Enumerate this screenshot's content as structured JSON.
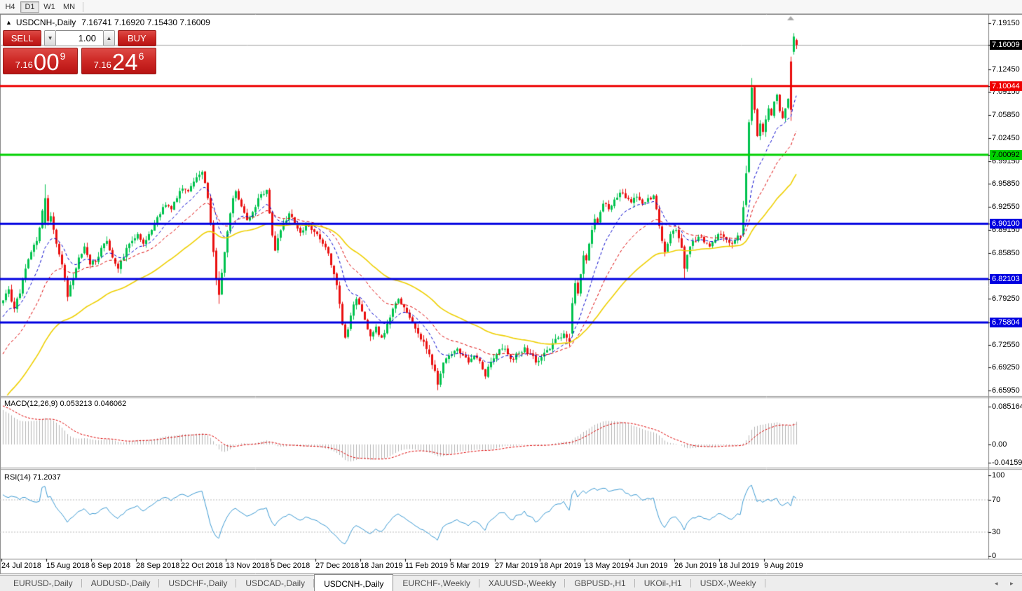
{
  "toolbar": {
    "timeframes": [
      {
        "label": "H4",
        "active": false
      },
      {
        "label": "D1",
        "active": true
      },
      {
        "label": "W1",
        "active": false
      },
      {
        "label": "MN",
        "active": false
      }
    ]
  },
  "chart_header": {
    "collapse_icon": "▲",
    "symbol": "USDCNH-,Daily",
    "ohlc": "7.16741 7.16920 7.15430 7.16009"
  },
  "trade_panel": {
    "sell_label": "SELL",
    "buy_label": "BUY",
    "volume": "1.00",
    "spinner_down": "▼",
    "spinner_up": "▲",
    "sell_price": {
      "prefix": "7.16",
      "big": "00",
      "sup": "9"
    },
    "buy_price": {
      "prefix": "7.16",
      "big": "24",
      "sup": "6"
    }
  },
  "price_axis": {
    "ticks": [
      "7.19150",
      "7.12450",
      "7.09150",
      "7.05850",
      "7.02450",
      "6.99150",
      "6.95850",
      "6.92550",
      "6.89150",
      "6.85850",
      "6.79250",
      "6.72550",
      "6.69250",
      "6.65950"
    ]
  },
  "levels": {
    "current": {
      "label": "7.16009",
      "value": 7.16009,
      "color": "#000000",
      "text": "#ffffff",
      "line_color": "#a6a6a6"
    },
    "lines": [
      {
        "label": "7.10044",
        "value": 7.10044,
        "color": "#ee0000",
        "text": "#ffffff"
      },
      {
        "label": "7.00092",
        "value": 7.00092,
        "color": "#00d000",
        "text": "#000000"
      },
      {
        "label": "6.90100",
        "value": 6.901,
        "color": "#0000e0",
        "text": "#ffffff"
      },
      {
        "label": "6.82103",
        "value": 6.82103,
        "color": "#0000e0",
        "text": "#ffffff"
      },
      {
        "label": "6.75804",
        "value": 6.75804,
        "color": "#0000e0",
        "text": "#ffffff"
      }
    ]
  },
  "macd": {
    "label": "MACD(12,26,9) 0.053213 0.046062",
    "axis_ticks": [
      {
        "label": "0.085164",
        "value": 0.085164
      },
      {
        "label": "0.00",
        "value": 0
      },
      {
        "label": "-0.041597",
        "value": -0.041597
      }
    ]
  },
  "rsi": {
    "label": "RSI(14) 71.2037",
    "axis_ticks": [
      {
        "label": "100",
        "value": 100
      },
      {
        "label": "70",
        "value": 70
      },
      {
        "label": "30",
        "value": 30
      },
      {
        "label": "0",
        "value": 0
      }
    ],
    "dashed_levels": [
      70,
      30
    ]
  },
  "date_axis": {
    "labels": [
      "24 Jul 2018",
      "15 Aug 2018",
      "6 Sep 2018",
      "28 Sep 2018",
      "22 Oct 2018",
      "13 Nov 2018",
      "5 Dec 2018",
      "27 Dec 2018",
      "18 Jan 2019",
      "11 Feb 2019",
      "5 Mar 2019",
      "27 Mar 2019",
      "18 Apr 2019",
      "13 May 2019",
      "4 Jun 2019",
      "26 Jun 2019",
      "18 Jul 2019",
      "9 Aug 2019"
    ]
  },
  "tabs": {
    "items": [
      {
        "label": "EURUSD-,Daily",
        "active": false
      },
      {
        "label": "AUDUSD-,Daily",
        "active": false
      },
      {
        "label": "USDCHF-,Daily",
        "active": false
      },
      {
        "label": "USDCAD-,Daily",
        "active": false
      },
      {
        "label": "USDCNH-,Daily",
        "active": true
      },
      {
        "label": "EURCHF-,Weekly",
        "active": false
      },
      {
        "label": "XAUUSD-,Weekly",
        "active": false
      },
      {
        "label": "GBPUSD-,H1",
        "active": false
      },
      {
        "label": "UKOil-,H1",
        "active": false
      },
      {
        "label": "USDX-,Weekly",
        "active": false
      }
    ],
    "scroll_left": "◂",
    "scroll_right": "▸"
  },
  "chart_data": {
    "type": "candlestick",
    "symbol": "USDCNH-",
    "timeframe": "Daily",
    "ohlc_display": {
      "open": "7.16741",
      "high": "7.16920",
      "low": "7.15430",
      "close": "7.16009"
    },
    "candle_count": 284,
    "anchors": [
      [
        0,
        6.79
      ],
      [
        2,
        6.806
      ],
      [
        4,
        6.778
      ],
      [
        6,
        6.8
      ],
      [
        8,
        6.836
      ],
      [
        10,
        6.86
      ],
      [
        12,
        6.876
      ],
      [
        14,
        6.92
      ],
      [
        15,
        6.938
      ],
      [
        16,
        6.905
      ],
      [
        17,
        6.912
      ],
      [
        19,
        6.872
      ],
      [
        21,
        6.842
      ],
      [
        23,
        6.795
      ],
      [
        25,
        6.822
      ],
      [
        27,
        6.852
      ],
      [
        29,
        6.868
      ],
      [
        31,
        6.842
      ],
      [
        33,
        6.846
      ],
      [
        35,
        6.866
      ],
      [
        37,
        6.876
      ],
      [
        39,
        6.852
      ],
      [
        41,
        6.836
      ],
      [
        43,
        6.852
      ],
      [
        45,
        6.872
      ],
      [
        47,
        6.88
      ],
      [
        48,
        6.886
      ],
      [
        50,
        6.872
      ],
      [
        52,
        6.886
      ],
      [
        54,
        6.9
      ],
      [
        56,
        6.915
      ],
      [
        58,
        6.928
      ],
      [
        60,
        6.922
      ],
      [
        62,
        6.938
      ],
      [
        64,
        6.952
      ],
      [
        66,
        6.948
      ],
      [
        68,
        6.962
      ],
      [
        70,
        6.972
      ],
      [
        71,
        6.976
      ],
      [
        72,
        6.96
      ],
      [
        73,
        6.938
      ],
      [
        74,
        6.9
      ],
      [
        75,
        6.86
      ],
      [
        76,
        6.82
      ],
      [
        77,
        6.798
      ],
      [
        78,
        6.83
      ],
      [
        79,
        6.86
      ],
      [
        80,
        6.89
      ],
      [
        81,
        6.916
      ],
      [
        82,
        6.938
      ],
      [
        83,
        6.948
      ],
      [
        85,
        6.926
      ],
      [
        87,
        6.906
      ],
      [
        89,
        6.918
      ],
      [
        91,
        6.938
      ],
      [
        93,
        6.944
      ],
      [
        94,
        6.95
      ],
      [
        95,
        6.916
      ],
      [
        96,
        6.884
      ],
      [
        97,
        6.862
      ],
      [
        98,
        6.88
      ],
      [
        100,
        6.902
      ],
      [
        102,
        6.916
      ],
      [
        104,
        6.902
      ],
      [
        106,
        6.888
      ],
      [
        108,
        6.9
      ],
      [
        110,
        6.892
      ],
      [
        112,
        6.886
      ],
      [
        114,
        6.872
      ],
      [
        116,
        6.858
      ],
      [
        118,
        6.828
      ],
      [
        119,
        6.812
      ],
      [
        120,
        6.785
      ],
      [
        121,
        6.755
      ],
      [
        122,
        6.736
      ],
      [
        123,
        6.748
      ],
      [
        124,
        6.768
      ],
      [
        125,
        6.784
      ],
      [
        126,
        6.792
      ],
      [
        127,
        6.784
      ],
      [
        128,
        6.774
      ],
      [
        129,
        6.762
      ],
      [
        130,
        6.748
      ],
      [
        131,
        6.738
      ],
      [
        132,
        6.744
      ],
      [
        133,
        6.752
      ],
      [
        134,
        6.74
      ],
      [
        135,
        6.736
      ],
      [
        137,
        6.756
      ],
      [
        139,
        6.778
      ],
      [
        141,
        6.792
      ],
      [
        143,
        6.78
      ],
      [
        144,
        6.772
      ],
      [
        146,
        6.758
      ],
      [
        148,
        6.742
      ],
      [
        150,
        6.73
      ],
      [
        152,
        6.712
      ],
      [
        154,
        6.688
      ],
      [
        155,
        6.668
      ],
      [
        156,
        6.684
      ],
      [
        157,
        6.7
      ],
      [
        158,
        6.706
      ],
      [
        160,
        6.712
      ],
      [
        162,
        6.72
      ],
      [
        164,
        6.71
      ],
      [
        166,
        6.7
      ],
      [
        168,
        6.71
      ],
      [
        170,
        6.702
      ],
      [
        171,
        6.69
      ],
      [
        172,
        6.68
      ],
      [
        173,
        6.694
      ],
      [
        175,
        6.706
      ],
      [
        176,
        6.712
      ],
      [
        178,
        6.72
      ],
      [
        180,
        6.712
      ],
      [
        182,
        6.704
      ],
      [
        184,
        6.714
      ],
      [
        186,
        6.722
      ],
      [
        188,
        6.712
      ],
      [
        190,
        6.7
      ],
      [
        192,
        6.708
      ],
      [
        194,
        6.718
      ],
      [
        196,
        6.728
      ],
      [
        198,
        6.736
      ],
      [
        200,
        6.742
      ],
      [
        201,
        6.736
      ],
      [
        202,
        6.73
      ],
      [
        203,
        6.786
      ],
      [
        204,
        6.815
      ],
      [
        205,
        6.8
      ],
      [
        206,
        6.828
      ],
      [
        207,
        6.855
      ],
      [
        208,
        6.848
      ],
      [
        209,
        6.872
      ],
      [
        210,
        6.892
      ],
      [
        211,
        6.908
      ],
      [
        212,
        6.902
      ],
      [
        213,
        6.918
      ],
      [
        214,
        6.93
      ],
      [
        216,
        6.922
      ],
      [
        218,
        6.936
      ],
      [
        220,
        6.946
      ],
      [
        222,
        6.938
      ],
      [
        224,
        6.932
      ],
      [
        226,
        6.94
      ],
      [
        228,
        6.93
      ],
      [
        230,
        6.938
      ],
      [
        232,
        6.942
      ],
      [
        233,
        6.922
      ],
      [
        234,
        6.898
      ],
      [
        235,
        6.876
      ],
      [
        236,
        6.86
      ],
      [
        237,
        6.872
      ],
      [
        238,
        6.886
      ],
      [
        240,
        6.892
      ],
      [
        241,
        6.88
      ],
      [
        242,
        6.866
      ],
      [
        243,
        6.836
      ],
      [
        244,
        6.856
      ],
      [
        245,
        6.868
      ],
      [
        246,
        6.876
      ],
      [
        248,
        6.882
      ],
      [
        250,
        6.874
      ],
      [
        252,
        6.868
      ],
      [
        254,
        6.878
      ],
      [
        256,
        6.886
      ],
      [
        258,
        6.878
      ],
      [
        260,
        6.872
      ],
      [
        262,
        6.884
      ],
      [
        263,
        6.882
      ],
      [
        264,
        6.925
      ],
      [
        265,
        6.974
      ],
      [
        266,
        7.048
      ],
      [
        267,
        7.098
      ],
      [
        268,
        7.066
      ],
      [
        269,
        7.028
      ],
      [
        270,
        7.046
      ],
      [
        271,
        7.034
      ],
      [
        272,
        7.052
      ],
      [
        273,
        7.068
      ],
      [
        274,
        7.058
      ],
      [
        275,
        7.078
      ],
      [
        276,
        7.088
      ],
      [
        277,
        7.064
      ],
      [
        278,
        7.054
      ],
      [
        279,
        7.068
      ],
      [
        280,
        7.082
      ],
      [
        281,
        7.066
      ],
      [
        282,
        7.172
      ],
      [
        283,
        7.16
      ]
    ],
    "specials": {
      "15": {
        "o": 6.9,
        "h": 6.958,
        "l": 6.894,
        "c": 6.938
      },
      "76": {
        "o": 6.862,
        "h": 6.866,
        "l": 6.812,
        "c": 6.82
      },
      "77": {
        "o": 6.82,
        "h": 6.832,
        "l": 6.785,
        "c": 6.798
      },
      "155": {
        "o": 6.688,
        "h": 6.692,
        "l": 6.66,
        "c": 6.668
      },
      "203": {
        "o": 6.742,
        "h": 6.794,
        "l": 6.738,
        "c": 6.786
      },
      "243": {
        "o": 6.868,
        "h": 6.87,
        "l": 6.821,
        "c": 6.836
      },
      "264": {
        "o": 6.886,
        "h": 6.934,
        "l": 6.882,
        "c": 6.925
      },
      "265": {
        "o": 6.928,
        "h": 6.985,
        "l": 6.925,
        "c": 6.974
      },
      "266": {
        "o": 6.976,
        "h": 7.052,
        "l": 6.974,
        "c": 7.048
      },
      "267": {
        "o": 7.05,
        "h": 7.112,
        "l": 7.044,
        "c": 7.098
      },
      "281": {
        "o": 7.136,
        "h": 7.143,
        "l": 7.05,
        "c": 7.066
      },
      "282": {
        "o": 7.15,
        "h": 7.177,
        "l": 7.146,
        "c": 7.172
      },
      "283": {
        "o": 7.167,
        "h": 7.169,
        "l": 7.154,
        "c": 7.16
      }
    },
    "moving_averages": [
      {
        "period": 12,
        "color": "#0000cc",
        "dashed": true,
        "seed": 6.762
      },
      {
        "period": 26,
        "color": "#dc0000",
        "dashed": true,
        "seed": 6.706
      },
      {
        "period": 55,
        "color": "#eecf00",
        "dashed": false,
        "seed": 6.638
      }
    ],
    "macd_params": {
      "fast": 12,
      "slow": 26,
      "signal": 9,
      "seed_fast": 6.772,
      "seed_slow": 6.69
    },
    "rsi_params": {
      "period": 14
    },
    "colors": {
      "bull": "#00c24e",
      "bear": "#ea0f0f",
      "macd_hist": "#b4b4b4",
      "macd_signal": "#dd0000",
      "rsi_line": "#3d9ad2",
      "dashed_level": "#bcbcbc",
      "border": "#808080",
      "marker": "#a8a8a8"
    }
  }
}
